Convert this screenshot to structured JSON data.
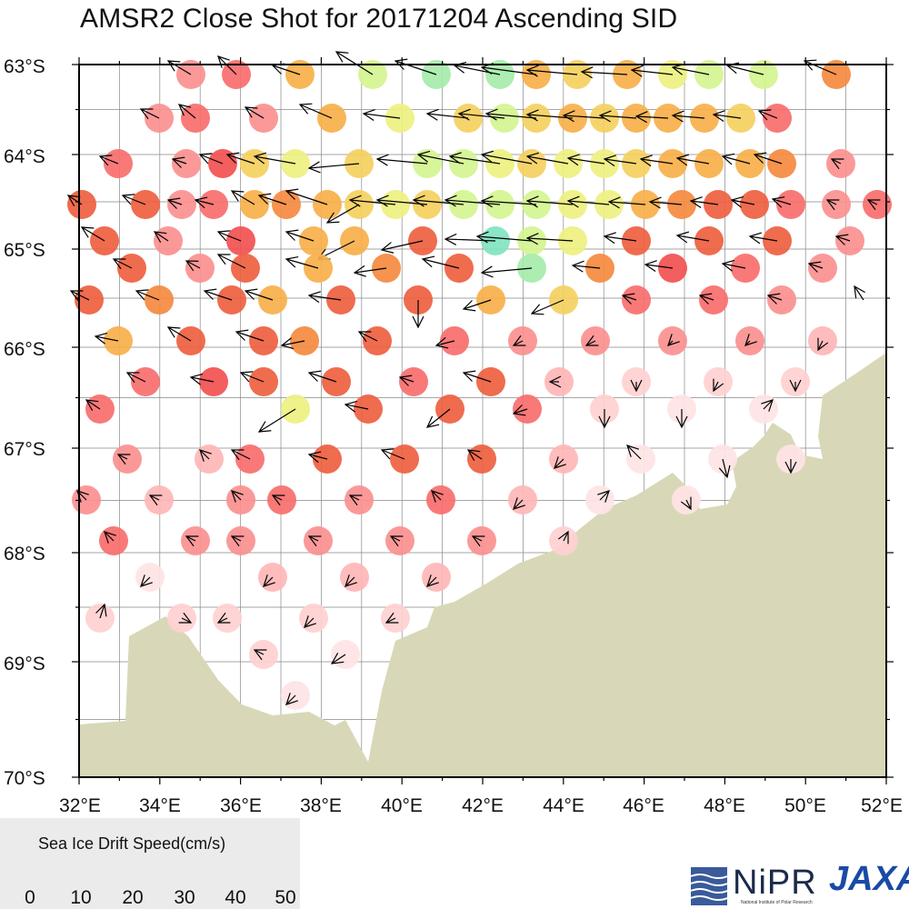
{
  "title": "AMSR2 Close Shot for 20171204 Ascending SID",
  "map": {
    "lat_labels": [
      "63°S",
      "64°S",
      "65°S",
      "66°S",
      "67°S",
      "68°S",
      "69°S",
      "70°S"
    ],
    "lon_labels": [
      "32°E",
      "34°E",
      "36°E",
      "38°E",
      "40°E",
      "42°E",
      "44°E",
      "46°E",
      "48°E",
      "50°E",
      "52°E"
    ],
    "land_color": "#d8d8b8",
    "vector_color": "#000000",
    "grid_color": "#888888"
  },
  "legend": {
    "title": "Sea Ice Drift Speed(cm/s)",
    "range": [
      0,
      50
    ],
    "tick_labels": [
      "0",
      "10",
      "20",
      "30",
      "40",
      "50"
    ],
    "colors": [
      "#ffffff",
      "#ffe4e4",
      "#ffd0d0",
      "#ffb6b6",
      "#fb9090",
      "#f86e6e",
      "#f25050",
      "#ee6040",
      "#f48a40",
      "#f7b04a",
      "#f5d060",
      "#eef080",
      "#d4f490",
      "#a6ecaa",
      "#80e4c0",
      "#62d8d8",
      "#4ccaf0",
      "#34a8f4",
      "#2080f0",
      "#1058e8",
      "#0830d8",
      "#0818c0",
      "#081098",
      "#050670",
      "#030450"
    ]
  },
  "logos": {
    "nipr_text": "NiPR",
    "nipr_subtitle": "National Institute of Polar Research",
    "jaxa_text": "JAXA"
  }
}
